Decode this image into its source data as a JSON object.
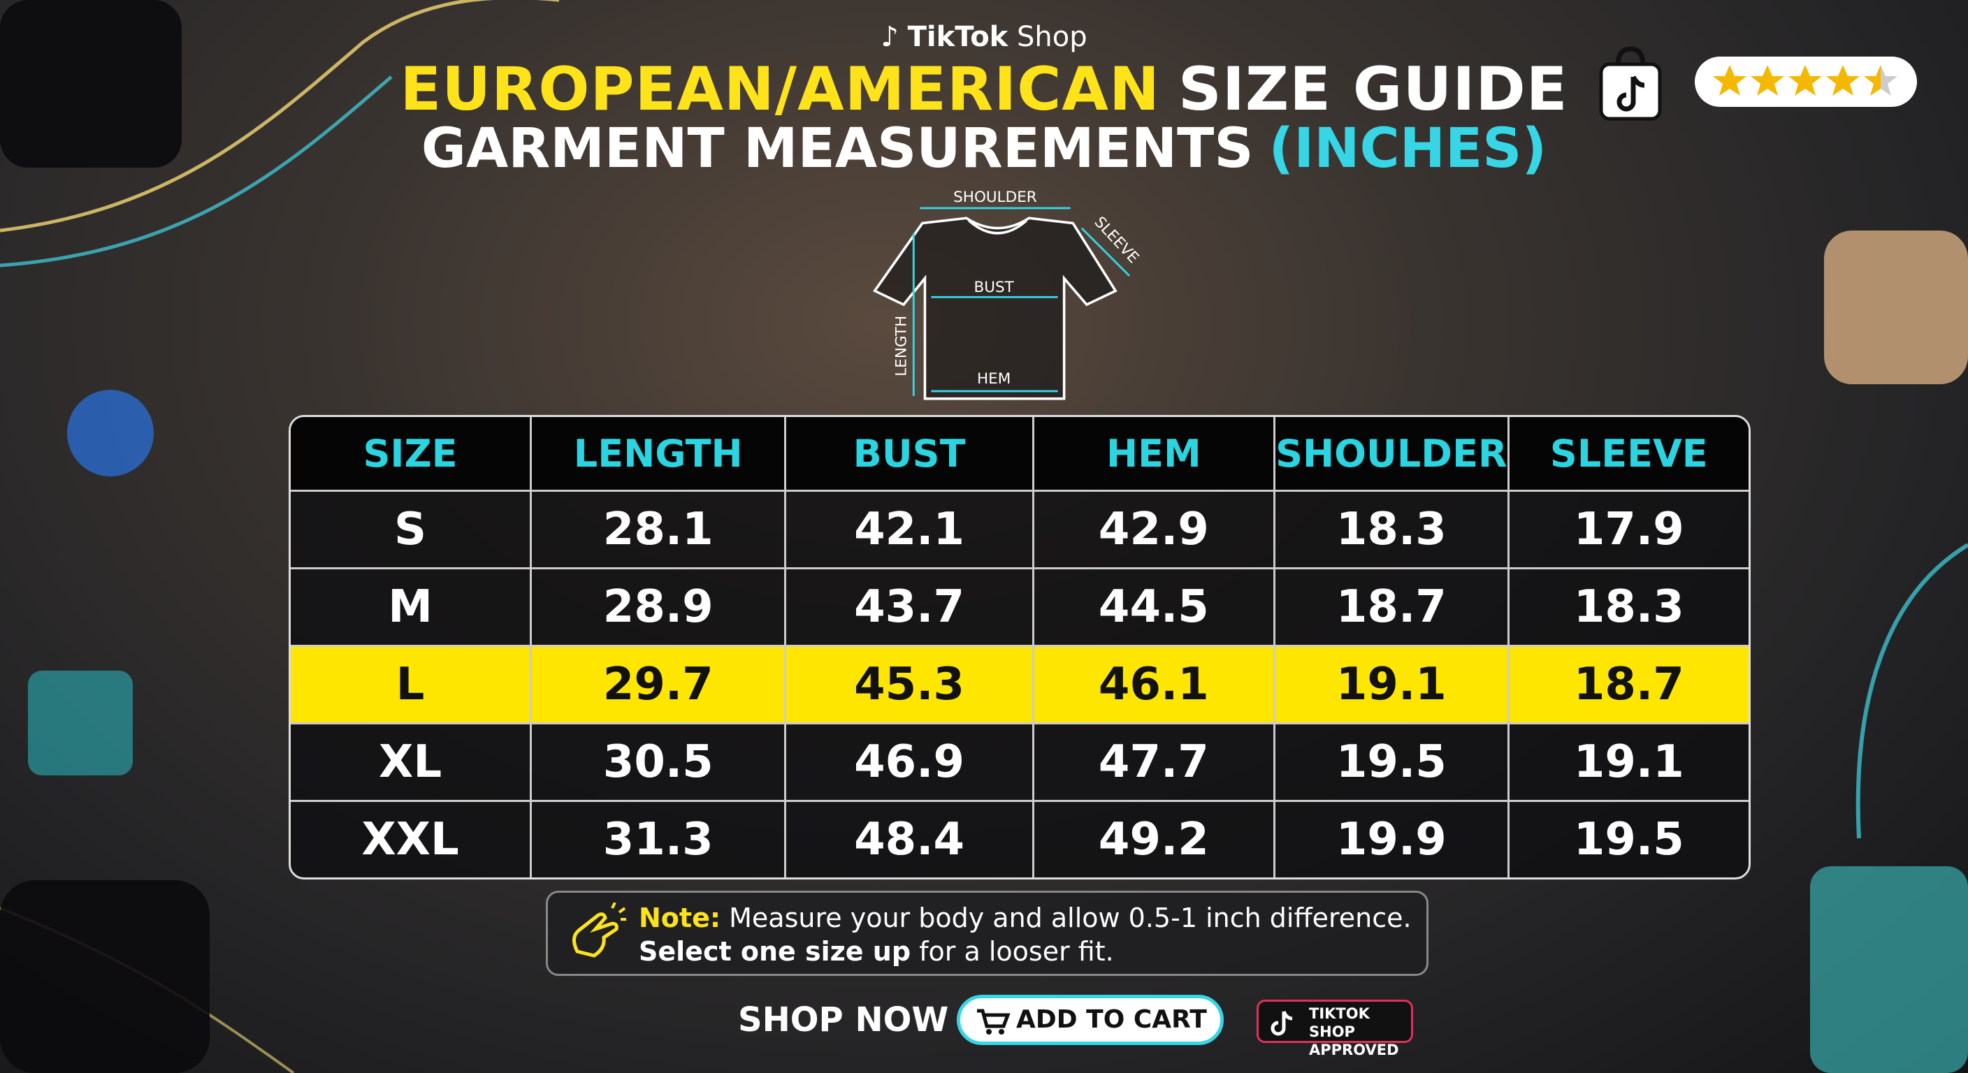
{
  "header": {
    "brand": "TikTok",
    "brand_suffix": "Shop",
    "title_highlight": "EUROPEAN/AMERICAN",
    "title_rest": "SIZE GUIDE",
    "subtitle": "GARMENT MEASUREMENTS",
    "subtitle_unit": "(INCHES)"
  },
  "diagram": {
    "shoulder": "SHOULDER",
    "sleeve": "SLEEVE",
    "bust": "BUST",
    "length": "LENGTH",
    "hem": "HEM"
  },
  "table": {
    "columns": [
      "SIZE",
      "LENGTH",
      "BUST",
      "HEM",
      "SHOULDER",
      "SLEEVE"
    ],
    "rows": [
      [
        "S",
        "28.1",
        "42.1",
        "42.9",
        "18.3",
        "17.9"
      ],
      [
        "M",
        "28.9",
        "43.7",
        "44.5",
        "18.7",
        "18.3"
      ],
      [
        "L",
        "29.7",
        "45.3",
        "46.1",
        "19.1",
        "18.7"
      ],
      [
        "XL",
        "30.5",
        "46.9",
        "47.7",
        "19.5",
        "19.1"
      ],
      [
        "XXL",
        "31.3",
        "48.4",
        "49.2",
        "19.9",
        "19.5"
      ]
    ]
  },
  "note": {
    "label": "Note:",
    "text": "Measure your body and allow 0.5-1 inch difference.",
    "emphasis": "Select one size up",
    "text_end": "for a looser fit."
  },
  "footer": {
    "shop_now": "SHOP NOW",
    "button": "ADD TO CART",
    "badge_line1": "TIKTOK SHOP",
    "badge_line2": "APPROVED"
  }
}
